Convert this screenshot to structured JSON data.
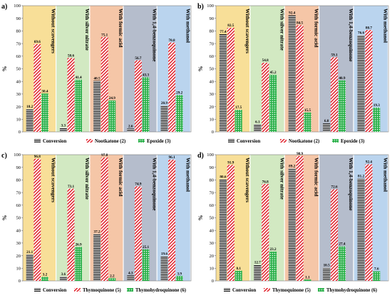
{
  "chart_data": [
    {
      "type": "bar",
      "panel_label": "a)",
      "categories": [
        "Without scavengers",
        "With silver nitrate",
        "With formic acid",
        "With 1,4-benzoquinone",
        "With methanol"
      ],
      "category_colors": [
        "#f8df98",
        "#d2e9c2",
        "#f5c6a7",
        "#b5bdcc",
        "#bad4ee"
      ],
      "ylabel": "%",
      "ylim": [
        0,
        100
      ],
      "yticks": [
        0,
        10,
        20,
        30,
        40,
        50,
        60,
        70,
        80,
        90,
        100
      ],
      "legend_position": "bottom",
      "series": [
        {
          "name": "Conversion",
          "pattern": "hlines",
          "color": "#000000",
          "values": [
            18.2,
            3.3,
            40.5,
            2.6,
            20.9
          ]
        },
        {
          "name": "Nootkatone (2)",
          "pattern": "diag",
          "color": "#e0202a",
          "values": [
            69.6,
            58.6,
            75.1,
            56.7,
            70.8
          ]
        },
        {
          "name": "Epoxide (3)",
          "pattern": "dots",
          "color": "#2bb14a",
          "values": [
            30.4,
            41.4,
            24.9,
            43.3,
            29.2
          ]
        }
      ]
    },
    {
      "type": "bar",
      "panel_label": "b)",
      "categories": [
        "Without scavengers",
        "With silver nitrate",
        "With formic acid",
        "With 1,4-benzoquinone",
        "With methanol"
      ],
      "category_colors": [
        "#f8df98",
        "#d2e9c2",
        "#f5c6a7",
        "#b5bdcc",
        "#bad4ee"
      ],
      "ylabel": "%",
      "ylim": [
        0,
        100
      ],
      "yticks": [
        0,
        10,
        20,
        30,
        40,
        50,
        60,
        70,
        80,
        90,
        100
      ],
      "legend_position": "bottom",
      "series": [
        {
          "name": "Conversion",
          "pattern": "hlines",
          "color": "#000000",
          "values": [
            77.4,
            6.1,
            92.4,
            6.8,
            76.6
          ]
        },
        {
          "name": "Nootkatone (2)",
          "pattern": "diag",
          "color": "#e0202a",
          "values": [
            82.5,
            54.8,
            84.5,
            59.1,
            80.7
          ]
        },
        {
          "name": "Epoxide (3)",
          "pattern": "dots",
          "color": "#2bb14a",
          "values": [
            17.5,
            45.2,
            15.5,
            40.9,
            19.3
          ]
        }
      ]
    },
    {
      "type": "bar",
      "panel_label": "c)",
      "categories": [
        "Without scavengers",
        "With silver nitrate",
        "With formic acid",
        "With 1,4-benzoquinone",
        "With methanol"
      ],
      "category_colors": [
        "#f8df98",
        "#d2e9c2",
        "#f5c6a7",
        "#b5bdcc",
        "#bad4ee"
      ],
      "ylabel": "%",
      "ylim": [
        0,
        100
      ],
      "yticks": [
        0,
        10,
        20,
        30,
        40,
        50,
        60,
        70,
        80,
        90,
        100
      ],
      "legend_position": "bottom",
      "series": [
        {
          "name": "Conversion",
          "pattern": "hlines",
          "color": "#000000",
          "values": [
            21.1,
            3.6,
            37.2,
            4.3,
            19.6
          ]
        },
        {
          "name": "Thymoquinone (5)",
          "pattern": "diag",
          "color": "#e0202a",
          "values": [
            96.8,
            73.1,
            97.8,
            74.9,
            96.1
          ]
        },
        {
          "name": "Thymohydroquinone (6)",
          "pattern": "dots",
          "color": "#2bb14a",
          "values": [
            3.2,
            26.9,
            2.2,
            25.1,
            3.9
          ]
        }
      ]
    },
    {
      "type": "bar",
      "panel_label": "d)",
      "categories": [
        "Without scavengers",
        "With silver nitrate",
        "With formic acid",
        "With 1,4-benzoquinone",
        "With methanol"
      ],
      "category_colors": [
        "#f8df98",
        "#d2e9c2",
        "#f5c6a7",
        "#b5bdcc",
        "#bad4ee"
      ],
      "ylabel": "%",
      "ylim": [
        0,
        100
      ],
      "yticks": [
        0,
        10,
        20,
        30,
        40,
        50,
        60,
        70,
        80,
        90,
        100
      ],
      "legend_position": "bottom",
      "series": [
        {
          "name": "Conversion",
          "pattern": "hlines",
          "color": "#000000",
          "values": [
            80.6,
            12.7,
            89.2,
            10.5,
            81.2
          ]
        },
        {
          "name": "Thymoquinone (5)",
          "pattern": "diag",
          "color": "#e0202a",
          "values": [
            91.9,
            76.8,
            98.9,
            72.6,
            92.4
          ]
        },
        {
          "name": "Thymohydroquinone (6)",
          "pattern": "dots",
          "color": "#2bb14a",
          "values": [
            8.1,
            23.2,
            1.1,
            27.4,
            7.6
          ]
        }
      ]
    }
  ]
}
